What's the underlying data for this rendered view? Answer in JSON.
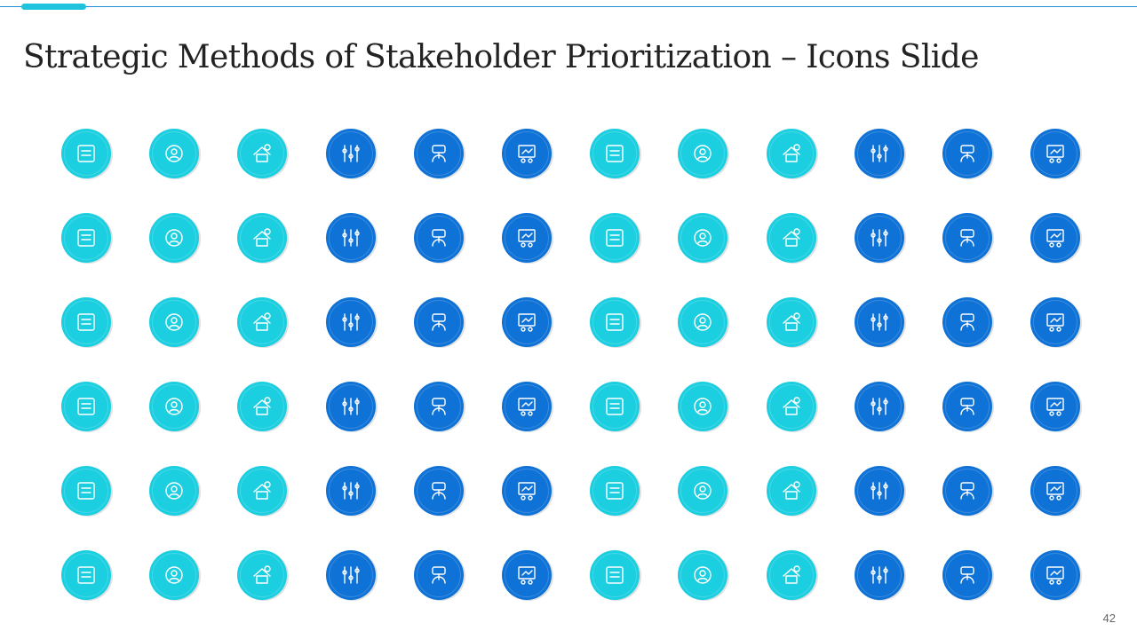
{
  "slide": {
    "title": "Strategic Methods of Stakeholder Prioritization – Icons Slide",
    "page_number": "42"
  },
  "colors": {
    "cyan": "#1ccfe0",
    "blue": "#0f72d6",
    "accent": "#1fc3de",
    "rule": "#1f8fd6"
  },
  "icon_rows": [
    [
      {
        "name": "idea-process-icon",
        "c": "cyan"
      },
      {
        "name": "stakeholder-network-icon",
        "c": "cyan"
      },
      {
        "name": "house-finance-icon",
        "c": "cyan"
      },
      {
        "name": "circuit-arrows-icon",
        "c": "blue"
      },
      {
        "name": "weighing-scale-icon",
        "c": "blue"
      },
      {
        "name": "presentation-team-icon",
        "c": "blue"
      },
      {
        "name": "support-hands-icon",
        "c": "cyan"
      },
      {
        "name": "person-revenue-chart-icon",
        "c": "cyan"
      },
      {
        "name": "home-growth-icon",
        "c": "cyan"
      },
      {
        "name": "team-in-hand-icon",
        "c": "blue"
      },
      {
        "name": "workflow-network-icon",
        "c": "blue"
      },
      {
        "name": "money-in-hand-icon",
        "c": "blue"
      }
    ],
    [
      {
        "name": "process-steps-icon",
        "c": "cyan"
      },
      {
        "name": "mobile-report-icon",
        "c": "cyan"
      },
      {
        "name": "stopwatch-icon",
        "c": "cyan"
      },
      {
        "name": "person-standing-icon",
        "c": "blue"
      },
      {
        "name": "seo-browser-icon",
        "c": "blue"
      },
      {
        "name": "gear-wrench-icon",
        "c": "blue"
      },
      {
        "name": "target-time-icon",
        "c": "cyan"
      },
      {
        "name": "browser-click-icon",
        "c": "cyan"
      },
      {
        "name": "gear-person-clock-icon",
        "c": "cyan"
      },
      {
        "name": "focus-network-icon",
        "c": "blue"
      },
      {
        "name": "shield-person-icon",
        "c": "blue"
      },
      {
        "name": "browser-add-icon",
        "c": "blue"
      }
    ],
    [
      {
        "name": "money-bag-hand-icon",
        "c": "cyan"
      },
      {
        "name": "hands-people-icon",
        "c": "cyan"
      },
      {
        "name": "document-search-icon",
        "c": "cyan"
      },
      {
        "name": "meeting-board-icon",
        "c": "blue"
      },
      {
        "name": "inbox-arrows-icon",
        "c": "blue"
      },
      {
        "name": "map-clock-icon",
        "c": "blue"
      },
      {
        "name": "hand-coins-icon",
        "c": "cyan"
      },
      {
        "name": "global-team-icon",
        "c": "cyan"
      },
      {
        "name": "monitor-analytics-icon",
        "c": "cyan"
      },
      {
        "name": "calculator-phone-icon",
        "c": "blue"
      },
      {
        "name": "rating-click-icon",
        "c": "blue"
      },
      {
        "name": "growth-cycle-icon",
        "c": "blue"
      }
    ],
    [
      {
        "name": "checklist-icon",
        "c": "cyan"
      },
      {
        "name": "add-document-icon",
        "c": "cyan"
      },
      {
        "name": "file-add-icon",
        "c": "cyan"
      },
      {
        "name": "magic-wand-icon",
        "c": "blue"
      },
      {
        "name": "gear-in-hand-icon",
        "c": "blue"
      },
      {
        "name": "financial-document-icon",
        "c": "blue"
      },
      {
        "name": "cloud-money-icon",
        "c": "cyan"
      },
      {
        "name": "bar-chart-dollar-icon",
        "c": "cyan"
      },
      {
        "name": "gear-warning-icon",
        "c": "cyan"
      },
      {
        "name": "scorecard-icon",
        "c": "blue"
      },
      {
        "name": "blueprint-gear-icon",
        "c": "blue"
      },
      {
        "name": "gear-growth-icon",
        "c": "blue"
      }
    ],
    [
      {
        "name": "thumbs-up-badge-icon",
        "c": "cyan"
      },
      {
        "name": "user-profile-icon",
        "c": "cyan"
      },
      {
        "name": "decline-warning-icon",
        "c": "cyan"
      },
      {
        "name": "property-money-icon",
        "c": "blue"
      },
      {
        "name": "risk-gauge-icon",
        "c": "blue"
      },
      {
        "name": "documents-stack-icon",
        "c": "blue"
      },
      {
        "name": "list-document-icon",
        "c": "cyan"
      },
      {
        "name": "calculator-report-icon",
        "c": "cyan"
      },
      {
        "name": "money-bag-in-hand-icon",
        "c": "cyan"
      },
      {
        "name": "monitor-transfer-icon",
        "c": "blue"
      },
      {
        "name": "shield-growth-icon",
        "c": "blue"
      },
      {
        "name": "declining-chart-icon",
        "c": "blue"
      }
    ],
    [
      {
        "name": "piggy-bank-icon",
        "c": "cyan"
      },
      {
        "name": "box-in-hands-icon",
        "c": "cyan"
      },
      {
        "name": "growth-coins-icon",
        "c": "cyan"
      },
      {
        "name": "report-chart-icon",
        "c": "blue"
      },
      {
        "name": "invoice-icon",
        "c": "blue"
      },
      {
        "name": "dollar-bar-chart-icon",
        "c": "blue"
      },
      {
        "name": "businessman-icon",
        "c": "cyan"
      },
      {
        "name": "document-search-a-icon",
        "c": "cyan"
      },
      {
        "name": "eye-vision-icon",
        "c": "cyan"
      },
      {
        "name": "target-arrow-icon",
        "c": "blue"
      },
      {
        "name": "mountain-flag-icon",
        "c": "blue"
      },
      {
        "name": "office-building-icon",
        "c": "blue"
      }
    ]
  ]
}
